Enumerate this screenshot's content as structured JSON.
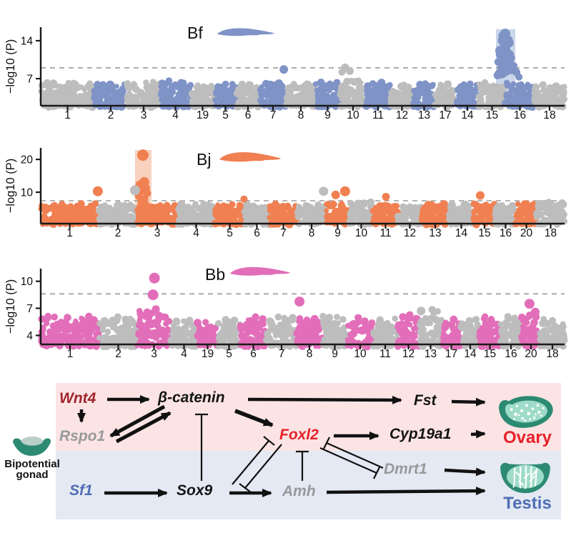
{
  "chart_data": [
    {
      "type": "scatter",
      "subtype": "manhattan",
      "panel_label": "Bf",
      "ylabel": "−log10 (P)",
      "yticks": [
        7,
        14
      ],
      "ylim": [
        2.0,
        16.5
      ],
      "threshold_y": 9.0,
      "categories": [
        "1",
        "2",
        "3",
        "4",
        "19",
        "5",
        "6",
        "7",
        "8",
        "9",
        "10",
        "11",
        "12",
        "13",
        "17",
        "14",
        "15",
        "16",
        "18"
      ],
      "chrom_weights": [
        75,
        46,
        46,
        43,
        33,
        31,
        32,
        38,
        40,
        35,
        36,
        34,
        33,
        29,
        30,
        32,
        37,
        41,
        42
      ],
      "chrom_noise_tops": [
        6.4,
        6.1,
        6.5,
        6.7,
        5.9,
        6.3,
        6.1,
        6.5,
        6.3,
        6.7,
        7.3,
        6.6,
        6.1,
        6.4,
        6.2,
        6.2,
        6.5,
        6.3,
        6.1
      ],
      "first_block_color": "gray",
      "species_color": "#7f93c6",
      "gray_color": "#bdbdbd",
      "highlight": {
        "chrom": "16",
        "x0_frac": 0.869,
        "x1_frac": 0.906,
        "color": "#cbd6ea"
      },
      "peak_cluster": {
        "cx_frac": 0.8868,
        "top": 15.3,
        "base": 7.0,
        "n": 34,
        "max_half_w": 11
      },
      "column": null,
      "outliers": [
        {
          "frac": 0.464,
          "v": 8.7,
          "r": 6,
          "c": "s"
        },
        {
          "frac": 0.575,
          "v": 8.2,
          "r": 5,
          "c": "g"
        },
        {
          "frac": 0.581,
          "v": 9.0,
          "r": 6,
          "c": "g"
        },
        {
          "frac": 0.59,
          "v": 8.4,
          "r": 5.5,
          "c": "g"
        },
        {
          "frac": 0.872,
          "v": 7.6,
          "r": 5.5,
          "c": "s"
        },
        {
          "frac": 0.902,
          "v": 9.3,
          "r": 6,
          "c": "s"
        },
        {
          "frac": 0.908,
          "v": 8.2,
          "r": 5.5,
          "c": "s"
        },
        {
          "frac": 0.913,
          "v": 7.3,
          "r": 5,
          "c": "s"
        }
      ]
    },
    {
      "type": "scatter",
      "subtype": "manhattan",
      "panel_label": "Bj",
      "ylabel": "−log10 (P)",
      "yticks": [
        10,
        20
      ],
      "ylim": [
        0.43,
        23.5
      ],
      "threshold_y": 7.4,
      "categories": [
        "1",
        "2",
        "3",
        "4",
        "5",
        "6",
        "7",
        "8",
        "9",
        "10",
        "11",
        "12",
        "13",
        "14",
        "15",
        "16",
        "20",
        "18"
      ],
      "chrom_weights": [
        81,
        54,
        56,
        53,
        41,
        35,
        39,
        40,
        33,
        33,
        35,
        33,
        38,
        35,
        30,
        29,
        29,
        39
      ],
      "chrom_noise_tops": [
        6.6,
        6.4,
        6.5,
        6.7,
        6.3,
        6.2,
        6.6,
        6.4,
        6.8,
        7.0,
        6.7,
        6.3,
        6.8,
        6.7,
        6.9,
        6.5,
        6.7,
        7.1
      ],
      "first_block_color": "species",
      "species_color": "#f08052",
      "gray_color": "#bdbdbd",
      "highlight": {
        "chrom": "3",
        "x0_frac": 0.18,
        "x1_frac": 0.2115,
        "color": "#f9d2bf"
      },
      "peak_cluster": null,
      "column": {
        "cx_frac": 0.195,
        "dots": [
          {
            "dx": 0,
            "v": 21.3,
            "r": 8
          },
          {
            "dx": 1,
            "v": 13.1,
            "r": 7
          },
          {
            "dx": -2,
            "v": 12.2,
            "r": 6.5
          },
          {
            "dx": 2,
            "v": 11.3,
            "r": 6
          },
          {
            "dx": -1,
            "v": 10.5,
            "r": 6
          },
          {
            "dx": 3,
            "v": 9.7,
            "r": 5.5
          },
          {
            "dx": -3,
            "v": 8.9,
            "r": 5.5
          },
          {
            "dx": 1,
            "v": 8.0,
            "r": 5.5
          },
          {
            "dx": -1,
            "v": 7.2,
            "r": 5.5
          },
          {
            "dx": 2,
            "v": 6.4,
            "r": 5
          },
          {
            "dx": -2,
            "v": 5.6,
            "r": 5
          },
          {
            "dx": 0,
            "v": 4.8,
            "r": 5
          }
        ]
      },
      "outliers": [
        {
          "frac": 0.109,
          "v": 10.3,
          "r": 7,
          "c": "s"
        },
        {
          "frac": 0.18,
          "v": 10.6,
          "r": 7,
          "c": "g"
        },
        {
          "frac": 0.388,
          "v": 7.9,
          "r": 5,
          "c": "s"
        },
        {
          "frac": 0.54,
          "v": 10.3,
          "r": 6.5,
          "c": "g"
        },
        {
          "frac": 0.563,
          "v": 9.2,
          "r": 6,
          "c": "s"
        },
        {
          "frac": 0.581,
          "v": 10.3,
          "r": 7,
          "c": "s"
        },
        {
          "frac": 0.659,
          "v": 8.6,
          "r": 5.5,
          "c": "s"
        },
        {
          "frac": 0.839,
          "v": 9.0,
          "r": 6,
          "c": "s"
        }
      ]
    },
    {
      "type": "scatter",
      "subtype": "manhattan",
      "panel_label": "Bb",
      "ylabel": "−log10 (P)",
      "yticks": [
        4,
        7,
        10
      ],
      "ylim": [
        3.0,
        11.4
      ],
      "threshold_y": 8.6,
      "categories": [
        "1",
        "2",
        "3",
        "4",
        "19",
        "5",
        "6",
        "7",
        "8",
        "9",
        "10",
        "11",
        "12",
        "13",
        "17",
        "14",
        "15",
        "16",
        "20",
        "18"
      ],
      "chrom_weights": [
        82,
        53,
        47,
        37,
        29,
        31,
        37,
        42,
        36,
        35,
        36,
        34,
        31,
        31,
        27,
        26,
        29,
        30,
        26,
        34
      ],
      "chrom_noise_tops": [
        6.2,
        6.3,
        6.8,
        5.9,
        5.8,
        6.0,
        6.1,
        6.2,
        6.0,
        6.2,
        6.1,
        6.0,
        6.3,
        6.9,
        6.0,
        5.9,
        6.1,
        6.2,
        6.3,
        6.1
      ],
      "first_block_color": "species",
      "species_color": "#e26eb9",
      "gray_color": "#bdbdbd",
      "highlight": null,
      "peak_cluster": null,
      "column": {
        "cx_frac": 0.217,
        "dots": [
          {
            "dx": 0,
            "v": 10.35,
            "r": 7.5
          },
          {
            "dx": -1,
            "v": 8.5,
            "r": 7.5
          },
          {
            "dx": 1,
            "v": 6.9,
            "r": 5.5
          },
          {
            "dx": -2,
            "v": 6.45,
            "r": 5
          },
          {
            "dx": 3,
            "v": 6.1,
            "r": 5
          },
          {
            "dx": -4,
            "v": 5.9,
            "r": 5
          }
        ]
      },
      "outliers": [
        {
          "frac": 0.494,
          "v": 7.75,
          "r": 7,
          "c": "s"
        },
        {
          "frac": 0.726,
          "v": 6.7,
          "r": 6,
          "c": "g"
        },
        {
          "frac": 0.933,
          "v": 7.5,
          "r": 7,
          "c": "s"
        },
        {
          "frac": 0.944,
          "v": 6.6,
          "r": 6,
          "c": "s"
        }
      ]
    }
  ],
  "pathway": {
    "ovary_band_color": "#fce4e4",
    "testis_band_color": "#e4e9f3",
    "bipotential_label_1": "Bipotential",
    "bipotential_label_2": "gonad",
    "genes": {
      "wnt4": {
        "label": "Wnt4",
        "color": "#a1262d"
      },
      "rspo1": {
        "label": "Rspo1",
        "color": "#97999b"
      },
      "beta_catenin": {
        "label": "β-catenin",
        "color": "#141414"
      },
      "foxl2": {
        "label": "Foxl2",
        "color": "#e8212a"
      },
      "fst": {
        "label": "Fst",
        "color": "#141414"
      },
      "cyp19a1": {
        "label": "Cyp19a1",
        "color": "#141414"
      },
      "sf1": {
        "label": "Sf1",
        "color": "#4f6eb5"
      },
      "sox9": {
        "label": "Sox9",
        "color": "#141414"
      },
      "amh": {
        "label": "Amh",
        "color": "#97999b"
      },
      "dmrt1": {
        "label": "Dmrt1",
        "color": "#97999b"
      }
    },
    "organs": {
      "ovary": {
        "label": "Ovary",
        "color": "#e8212a"
      },
      "testis": {
        "label": "Testis",
        "color": "#4f6eb5"
      }
    },
    "icon_palette": {
      "teal_dark": "#2d8a72",
      "teal_light": "#9edbc8",
      "speckle": "#ffffff",
      "bipotential_inner": "#b9cfc7"
    },
    "edges": [
      {
        "from": "Wnt4",
        "to": "β-catenin",
        "type": "activates"
      },
      {
        "from": "Wnt4",
        "to": "Rspo1",
        "type": "activates"
      },
      {
        "from": "Rspo1",
        "to": "β-catenin",
        "type": "activates"
      },
      {
        "from": "β-catenin",
        "to": "Rspo1",
        "type": "activates"
      },
      {
        "from": "β-catenin",
        "to": "Fst",
        "type": "activates"
      },
      {
        "from": "β-catenin",
        "to": "Foxl2",
        "type": "activates"
      },
      {
        "from": "Sox9",
        "to": "β-catenin",
        "type": "inhibits"
      },
      {
        "from": "Fst",
        "to": "Ovary",
        "type": "activates"
      },
      {
        "from": "Foxl2",
        "to": "Cyp19a1",
        "type": "activates"
      },
      {
        "from": "Cyp19a1",
        "to": "Ovary",
        "type": "activates"
      },
      {
        "from": "Sox9",
        "to": "Foxl2",
        "type": "inhibits"
      },
      {
        "from": "Foxl2",
        "to": "Sox9",
        "type": "inhibits"
      },
      {
        "from": "Amh",
        "to": "Foxl2",
        "type": "inhibits"
      },
      {
        "from": "Foxl2",
        "to": "Dmrt1",
        "type": "inhibits"
      },
      {
        "from": "Dmrt1",
        "to": "Foxl2",
        "type": "inhibits"
      },
      {
        "from": "Sf1",
        "to": "Sox9",
        "type": "activates"
      },
      {
        "from": "Sox9",
        "to": "Amh",
        "type": "activates"
      },
      {
        "from": "Amh",
        "to": "Testis",
        "type": "activates"
      },
      {
        "from": "Dmrt1",
        "to": "Testis",
        "type": "activates"
      }
    ]
  }
}
